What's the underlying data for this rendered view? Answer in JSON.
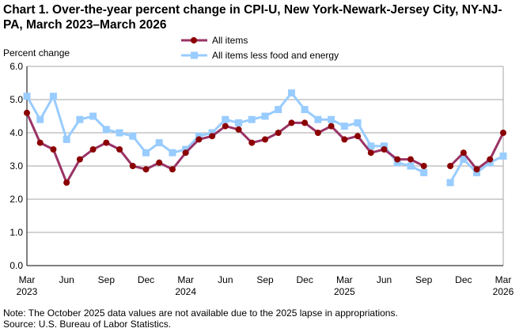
{
  "chart_data": {
    "type": "line",
    "title": "Chart 1. Over-the-year percent change in CPI-U, New York-Newark-Jersey City, NY-NJ-PA, March 2023–March 2026",
    "ylabel": "Percent change",
    "ylim": [
      0,
      6
    ],
    "yticks": [
      "0.0",
      "1.0",
      "2.0",
      "3.0",
      "4.0",
      "5.0",
      "6.0"
    ],
    "grid": true,
    "legend": "top-center",
    "x": [
      "Mar 2023",
      "Apr 2023",
      "May 2023",
      "Jun 2023",
      "Jul 2023",
      "Aug 2023",
      "Sep 2023",
      "Oct 2023",
      "Nov 2023",
      "Dec 2023",
      "Jan 2024",
      "Feb 2024",
      "Mar 2024",
      "Apr 2024",
      "May 2024",
      "Jun 2024",
      "Jul 2024",
      "Aug 2024",
      "Sep 2024",
      "Oct 2024",
      "Nov 2024",
      "Dec 2024",
      "Jan 2025",
      "Feb 2025",
      "Mar 2025",
      "Apr 2025",
      "May 2025",
      "Jun 2025",
      "Jul 2025",
      "Aug 2025",
      "Sep 2025",
      "Oct 2025",
      "Nov 2025",
      "Dec 2025",
      "Jan 2026",
      "Feb 2026",
      "Mar 2026"
    ],
    "xticks": [
      {
        "label": "Mar",
        "year": "2023",
        "index": 0
      },
      {
        "label": "Jun",
        "index": 3
      },
      {
        "label": "Sep",
        "index": 6
      },
      {
        "label": "Dec",
        "index": 9
      },
      {
        "label": "Mar",
        "year": "2024",
        "index": 12
      },
      {
        "label": "Jun",
        "index": 15
      },
      {
        "label": "Sep",
        "index": 18
      },
      {
        "label": "Dec",
        "index": 21
      },
      {
        "label": "Mar",
        "year": "2025",
        "index": 24
      },
      {
        "label": "Jun",
        "index": 27
      },
      {
        "label": "Sep",
        "index": 30
      },
      {
        "label": "Dec",
        "index": 33
      },
      {
        "label": "Mar",
        "year": "2026",
        "index": 36
      }
    ],
    "series": [
      {
        "name": "All items",
        "color": "#8B0000",
        "line_color": "#993366",
        "marker": "circle",
        "values": [
          4.6,
          3.7,
          3.5,
          2.5,
          3.2,
          3.5,
          3.7,
          3.5,
          3.0,
          2.9,
          3.1,
          2.9,
          3.4,
          3.8,
          3.9,
          4.2,
          4.1,
          3.7,
          3.8,
          4.0,
          4.3,
          4.3,
          4.0,
          4.2,
          3.8,
          3.9,
          3.4,
          3.5,
          3.2,
          3.2,
          3.0,
          null,
          3.0,
          3.4,
          2.9,
          3.2,
          4.0
        ]
      },
      {
        "name": "All items less food and energy",
        "color": "#99CCFF",
        "line_color": "#99CCFF",
        "marker": "square",
        "values": [
          5.1,
          4.4,
          5.1,
          3.8,
          4.4,
          4.5,
          4.1,
          4.0,
          3.9,
          3.4,
          3.7,
          3.4,
          3.5,
          3.9,
          4.0,
          4.4,
          4.3,
          4.4,
          4.5,
          4.7,
          5.2,
          4.7,
          4.4,
          4.4,
          4.2,
          4.3,
          3.6,
          3.6,
          3.1,
          3.0,
          2.8,
          null,
          2.5,
          3.2,
          2.8,
          3.1,
          3.3
        ]
      }
    ]
  },
  "notes": {
    "note": "Note: The October 2025 data values  are not available  due to the 2025  lapse in appropriations.",
    "source": "Source: U.S. Bureau of Labor Statistics."
  }
}
